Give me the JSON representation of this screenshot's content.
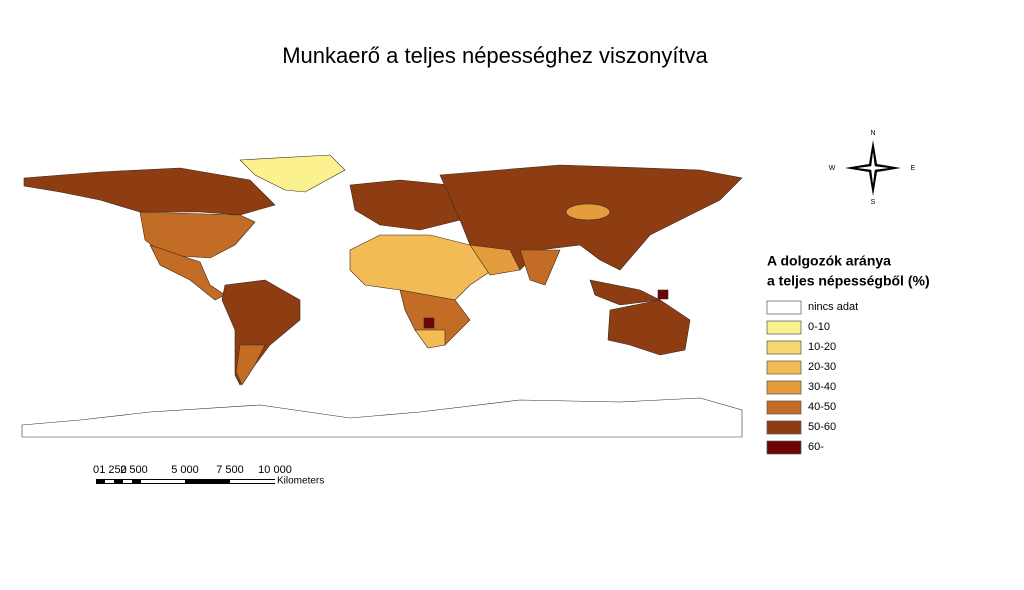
{
  "title": "Munkaerő a teljes népességhez viszonyítva",
  "legend": {
    "title": [
      "A dolgozók aránya",
      "a teljes népességből (%)"
    ],
    "items": [
      {
        "label": "nincs adat",
        "color": "#ffffff"
      },
      {
        "label": "0-10",
        "color": "#fbf28f"
      },
      {
        "label": "10-20",
        "color": "#f7d870"
      },
      {
        "label": "20-30",
        "color": "#f2bb55"
      },
      {
        "label": "30-40",
        "color": "#e49c3c"
      },
      {
        "label": "40-50",
        "color": "#c26c25"
      },
      {
        "label": "50-60",
        "color": "#8e3d12"
      },
      {
        "label": "60-",
        "color": "#6b0404"
      }
    ]
  },
  "scale": {
    "labels": [
      "0",
      "1 250",
      "2 500",
      "5 000",
      "7 500",
      "10 000"
    ],
    "unit": "Kilometers"
  },
  "compass": {
    "n": "N",
    "e": "E",
    "s": "S",
    "w": "W"
  }
}
